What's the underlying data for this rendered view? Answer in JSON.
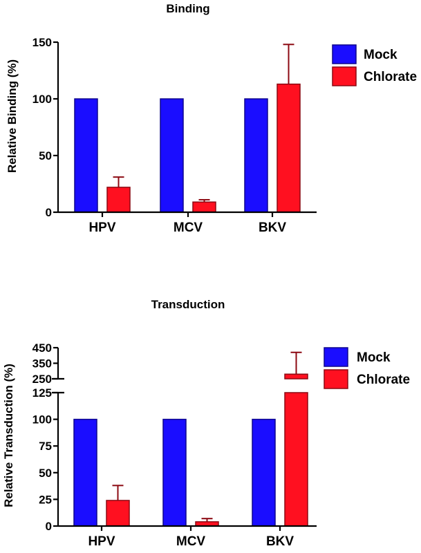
{
  "chart_data": [
    {
      "type": "bar",
      "title": "Binding",
      "ylabel": "Relative Binding (%)",
      "xlabel": "",
      "categories": [
        "HPV",
        "MCV",
        "BKV"
      ],
      "ylim": [
        0,
        150
      ],
      "yticks": [
        "0",
        "50",
        "100",
        "150"
      ],
      "series": [
        {
          "name": "Mock",
          "color": "#1a0dff",
          "values": [
            100,
            100,
            100
          ],
          "errors": [
            0,
            0,
            0
          ]
        },
        {
          "name": "Chlorate",
          "color": "#ff1020",
          "values": [
            22,
            9,
            113
          ],
          "errors": [
            9,
            2,
            35
          ]
        }
      ],
      "legend": "top-right"
    },
    {
      "type": "bar",
      "title": "Transduction",
      "ylabel": "Relative Transduction (%)",
      "xlabel": "",
      "categories": [
        "HPV",
        "MCV",
        "BKV"
      ],
      "ylim": [
        0,
        450
      ],
      "axis_break": [
        125,
        250
      ],
      "yticks": [
        "0",
        "25",
        "50",
        "75",
        "100",
        "125",
        "250",
        "350",
        "450"
      ],
      "series": [
        {
          "name": "Mock",
          "color": "#1a0dff",
          "values": [
            100,
            100,
            100
          ],
          "errors": [
            0,
            0,
            0
          ]
        },
        {
          "name": "Chlorate",
          "color": "#ff1020",
          "values": [
            24,
            4,
            280
          ],
          "errors": [
            14,
            3,
            140
          ]
        }
      ],
      "legend": "top-right"
    }
  ]
}
